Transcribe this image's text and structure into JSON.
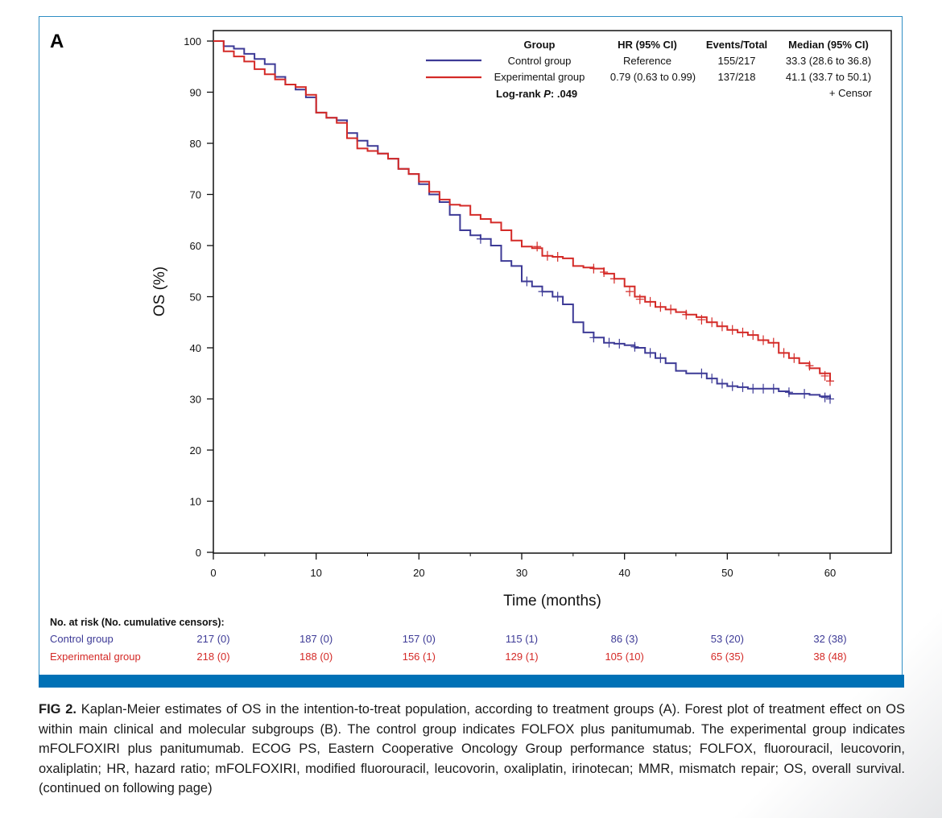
{
  "panel_label": "A",
  "colors": {
    "control": "#3d3a96",
    "experimental": "#d42a27",
    "frame": "#2f8ec4",
    "bar": "#0071b6"
  },
  "chart_data": {
    "type": "line",
    "subtype": "kaplan-meier",
    "xlabel": "Time (months)",
    "ylabel": "OS (%)",
    "xlim": [
      0,
      66
    ],
    "ylim": [
      0,
      100
    ],
    "xticks": [
      0,
      10,
      20,
      30,
      40,
      50,
      60
    ],
    "yticks": [
      0,
      10,
      20,
      30,
      40,
      50,
      60,
      70,
      80,
      90,
      100
    ],
    "legend": {
      "headers": {
        "group": "Group",
        "hr": "HR (95% CI)",
        "events": "Events/Total",
        "median": "Median (95% CI)"
      },
      "rows": [
        {
          "name": "Control group",
          "hr": "Reference",
          "events": "155/217",
          "median": "33.3 (28.6 to 36.8)"
        },
        {
          "name": "Experimental group",
          "hr": "0.79 (0.63 to 0.99)",
          "events": "137/218",
          "median": "41.1 (33.7 to 50.1)"
        }
      ],
      "logrank_label": "Log-rank ",
      "logrank_p": "P",
      "logrank_value": ": .049",
      "censor_label": "+ Censor"
    },
    "series": [
      {
        "name": "Control group",
        "color": "#3d3a96",
        "points": [
          [
            0,
            100
          ],
          [
            1,
            99
          ],
          [
            2,
            98.5
          ],
          [
            3,
            97.5
          ],
          [
            4,
            96.5
          ],
          [
            5,
            95.5
          ],
          [
            6,
            93
          ],
          [
            7,
            91.5
          ],
          [
            8,
            90.5
          ],
          [
            9,
            89
          ],
          [
            10,
            86
          ],
          [
            11,
            85
          ],
          [
            12,
            84.5
          ],
          [
            13,
            82
          ],
          [
            14,
            80.5
          ],
          [
            15,
            79.5
          ],
          [
            16,
            78
          ],
          [
            17,
            77
          ],
          [
            18,
            75
          ],
          [
            19,
            74
          ],
          [
            20,
            72
          ],
          [
            21,
            70
          ],
          [
            22,
            68.5
          ],
          [
            23,
            66
          ],
          [
            24,
            63
          ],
          [
            25,
            62
          ],
          [
            26,
            61.3
          ],
          [
            27,
            60
          ],
          [
            28,
            57
          ],
          [
            29,
            56
          ],
          [
            30,
            53
          ],
          [
            31,
            52
          ],
          [
            32,
            51
          ],
          [
            33,
            50
          ],
          [
            34,
            48.5
          ],
          [
            35,
            45
          ],
          [
            36,
            43
          ],
          [
            37,
            42
          ],
          [
            38,
            41
          ],
          [
            39,
            40.8
          ],
          [
            40,
            40.5
          ],
          [
            41,
            40
          ],
          [
            42,
            39
          ],
          [
            43,
            38
          ],
          [
            44,
            37
          ],
          [
            45,
            35.5
          ],
          [
            46,
            35
          ],
          [
            47,
            35
          ],
          [
            48,
            34
          ],
          [
            49,
            33
          ],
          [
            50,
            32.5
          ],
          [
            51,
            32.3
          ],
          [
            52,
            32
          ],
          [
            53,
            32
          ],
          [
            54,
            32
          ],
          [
            55,
            31.5
          ],
          [
            56,
            31
          ],
          [
            57,
            31
          ],
          [
            58,
            30.8
          ],
          [
            59,
            30.5
          ],
          [
            60,
            30
          ]
        ],
        "censors": [
          [
            26,
            61.3
          ],
          [
            30.5,
            53
          ],
          [
            32,
            51
          ],
          [
            33.5,
            50
          ],
          [
            37,
            42
          ],
          [
            38.5,
            41
          ],
          [
            39.5,
            40.8
          ],
          [
            41,
            40.2
          ],
          [
            42.5,
            39
          ],
          [
            43.5,
            38
          ],
          [
            47.5,
            35
          ],
          [
            48.5,
            34
          ],
          [
            49.5,
            33
          ],
          [
            50.5,
            32.5
          ],
          [
            51.5,
            32.3
          ],
          [
            52.5,
            32
          ],
          [
            53.5,
            32
          ],
          [
            54.5,
            32
          ],
          [
            56,
            31.3
          ],
          [
            57.5,
            31
          ],
          [
            59.5,
            30.3
          ],
          [
            60,
            30
          ]
        ]
      },
      {
        "name": "Experimental group",
        "color": "#d42a27",
        "points": [
          [
            0,
            100
          ],
          [
            1,
            98
          ],
          [
            2,
            97
          ],
          [
            3,
            96
          ],
          [
            4,
            94.5
          ],
          [
            5,
            93.5
          ],
          [
            6,
            92.5
          ],
          [
            7,
            91.5
          ],
          [
            8,
            91
          ],
          [
            9,
            89.5
          ],
          [
            10,
            86
          ],
          [
            11,
            85
          ],
          [
            12,
            84
          ],
          [
            13,
            81
          ],
          [
            14,
            79
          ],
          [
            15,
            78.5
          ],
          [
            16,
            78
          ],
          [
            17,
            77
          ],
          [
            18,
            75
          ],
          [
            19,
            74
          ],
          [
            20,
            72.5
          ],
          [
            21,
            70.5
          ],
          [
            22,
            69
          ],
          [
            23,
            68
          ],
          [
            24,
            67.8
          ],
          [
            25,
            66
          ],
          [
            26,
            65.2
          ],
          [
            27,
            64.5
          ],
          [
            28,
            63
          ],
          [
            29,
            61
          ],
          [
            30,
            59.8
          ],
          [
            31,
            59.5
          ],
          [
            32,
            58
          ],
          [
            33,
            57.8
          ],
          [
            34,
            57.5
          ],
          [
            35,
            56
          ],
          [
            36,
            55.7
          ],
          [
            37,
            55.5
          ],
          [
            38,
            54.5
          ],
          [
            39,
            53.5
          ],
          [
            40,
            52
          ],
          [
            41,
            50
          ],
          [
            42,
            49
          ],
          [
            43,
            48
          ],
          [
            44,
            47.5
          ],
          [
            45,
            47
          ],
          [
            46,
            46.5
          ],
          [
            47,
            46
          ],
          [
            48,
            45
          ],
          [
            49,
            44.2
          ],
          [
            50,
            43.5
          ],
          [
            51,
            43
          ],
          [
            52,
            42.5
          ],
          [
            53,
            41.5
          ],
          [
            54,
            41
          ],
          [
            55,
            39
          ],
          [
            56,
            38
          ],
          [
            57,
            37
          ],
          [
            58,
            36
          ],
          [
            59,
            35
          ],
          [
            60,
            33.5
          ]
        ],
        "censors": [
          [
            31.5,
            59.8
          ],
          [
            32.5,
            58
          ],
          [
            33.5,
            57.8
          ],
          [
            37,
            55.5
          ],
          [
            38,
            54.8
          ],
          [
            39,
            53.5
          ],
          [
            40.5,
            51
          ],
          [
            41.5,
            49.5
          ],
          [
            42.5,
            49
          ],
          [
            43.5,
            48
          ],
          [
            44.5,
            47.5
          ],
          [
            46,
            46.5
          ],
          [
            47.5,
            45.5
          ],
          [
            48.5,
            45
          ],
          [
            49.5,
            44.2
          ],
          [
            50.5,
            43.5
          ],
          [
            51.5,
            43
          ],
          [
            52.5,
            42.5
          ],
          [
            53.5,
            41.5
          ],
          [
            54.5,
            41
          ],
          [
            55.5,
            39
          ],
          [
            56.5,
            38
          ],
          [
            58,
            36.5
          ],
          [
            59.5,
            34.5
          ],
          [
            60,
            33.5
          ]
        ]
      }
    ]
  },
  "risk_table": {
    "title": "No. at risk (No. cumulative censors):",
    "times": [
      0,
      10,
      20,
      30,
      40,
      50,
      60
    ],
    "rows": [
      {
        "name": "Control group",
        "values": [
          "217 (0)",
          "187 (0)",
          "157 (0)",
          "115 (1)",
          "86 (3)",
          "53 (20)",
          "32 (38)"
        ]
      },
      {
        "name": "Experimental group",
        "values": [
          "218 (0)",
          "188 (0)",
          "156 (1)",
          "129 (1)",
          "105 (10)",
          "65 (35)",
          "38 (48)"
        ]
      }
    ]
  },
  "caption": {
    "label": "FIG 2.",
    "text": "Kaplan-Meier estimates of OS in the intention-to-treat population, according to treatment groups (A). Forest plot of treatment effect on OS within main clinical and molecular subgroups (B). The control group indicates FOLFOX plus panitumumab. The experimental group indicates mFOLFOXIRI plus panitumumab. ECOG PS, Eastern Cooperative Oncology Group performance status; FOLFOX, fluorouracil, leucovorin, oxaliplatin; HR, hazard ratio; mFOLFOXIRI, modified fluorouracil, leucovorin, oxaliplatin, irinotecan; MMR, mismatch repair; OS, overall survival. (continued on following page)"
  }
}
